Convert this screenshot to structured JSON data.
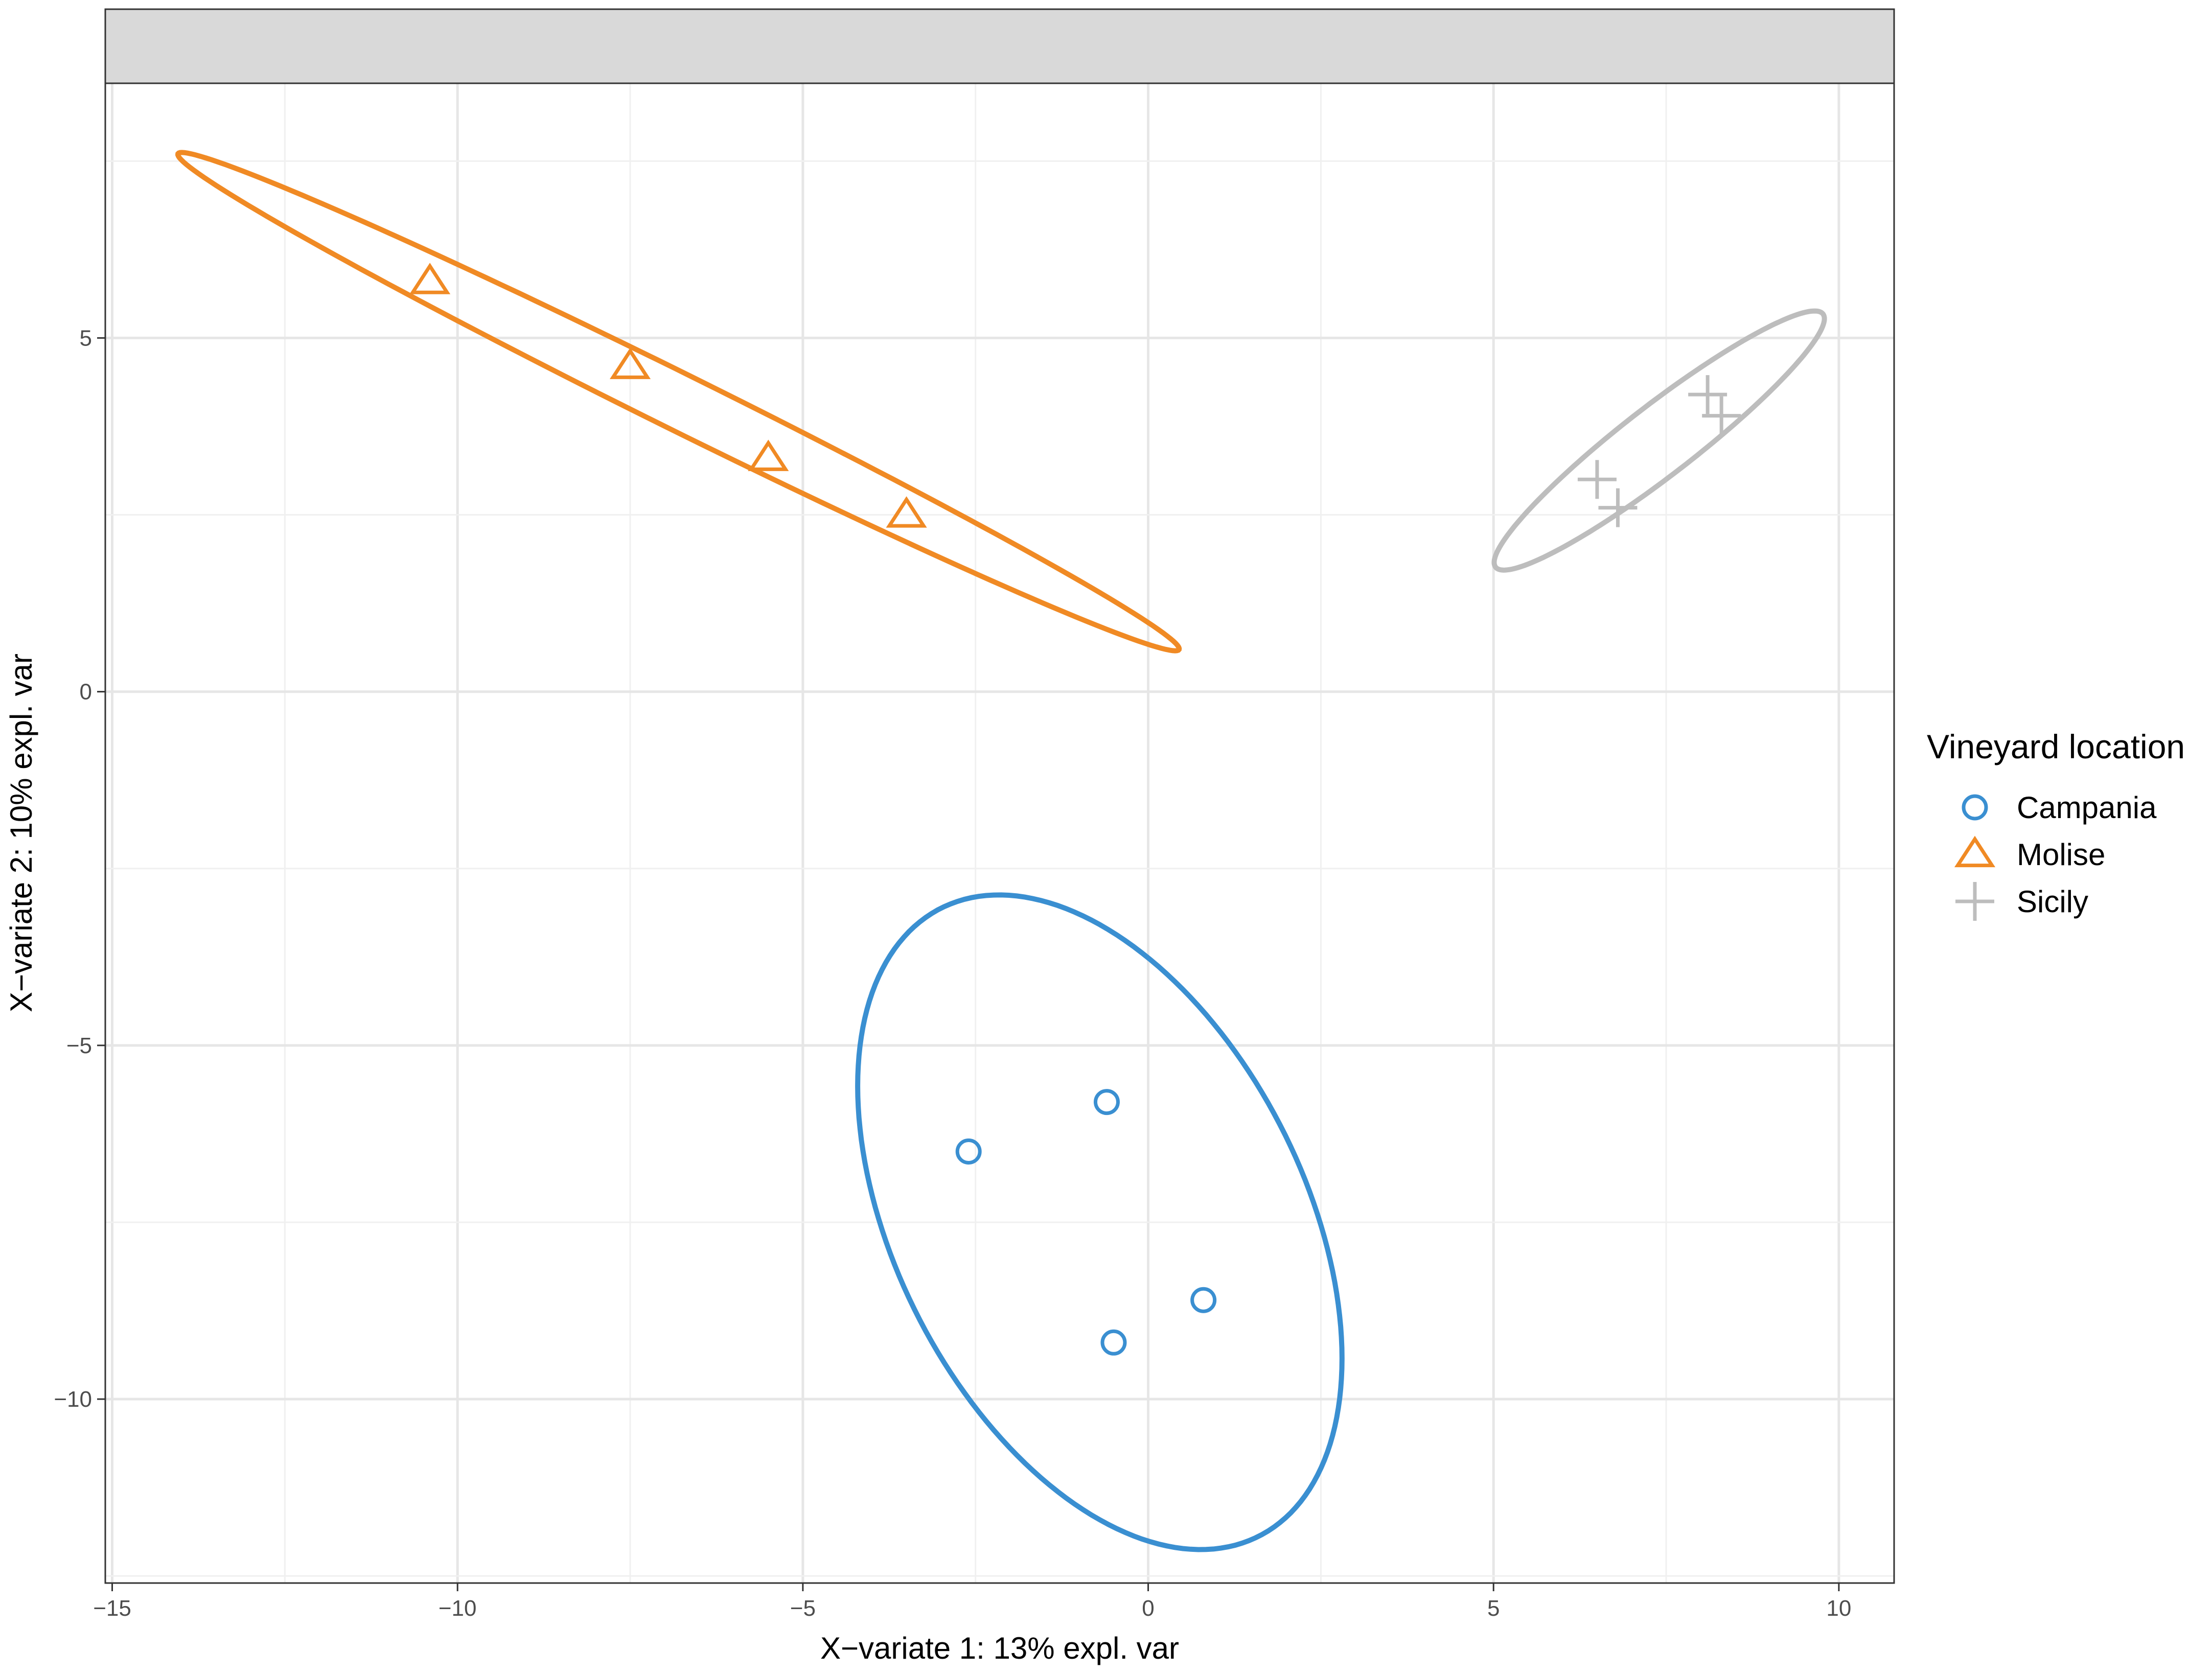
{
  "chart_data": {
    "type": "scatter",
    "title": "",
    "xlabel": "X−variate 1: 13% expl. var",
    "ylabel": "X−variate 2: 10% expl. var",
    "xlim": [
      -15.1,
      10.8
    ],
    "ylim": [
      -12.6,
      8.6
    ],
    "x_ticks": [
      -15,
      -10,
      -5,
      0,
      5,
      10
    ],
    "x_tick_labels": [
      "−15",
      "−10",
      "−5",
      "0",
      "5",
      "10"
    ],
    "y_ticks": [
      -10,
      -5,
      0,
      5
    ],
    "y_tick_labels": [
      "−10",
      "−5",
      "0",
      "5"
    ],
    "grid": true,
    "facet_strip": true,
    "legend": {
      "title": "Vineyard location",
      "position": "right"
    },
    "series": [
      {
        "name": "Campania",
        "color": "#3a8fd1",
        "marker": "circle",
        "points": [
          [
            -2.6,
            -6.5
          ],
          [
            -0.6,
            -5.8
          ],
          [
            0.8,
            -8.6
          ],
          [
            -0.5,
            -9.2
          ]
        ],
        "ellipse": {
          "center": [
            -0.7,
            -7.5
          ],
          "semi_major": 5.0,
          "semi_minor": 2.95,
          "angle_deg": -62
        }
      },
      {
        "name": "Molise",
        "color": "#f08a24",
        "marker": "triangle",
        "points": [
          [
            -10.4,
            5.8
          ],
          [
            -7.5,
            4.6
          ],
          [
            -5.5,
            3.3
          ],
          [
            -3.5,
            2.5
          ]
        ],
        "ellipse": {
          "center": [
            -6.8,
            4.1
          ],
          "semi_major": 8.05,
          "semi_minor": 0.4,
          "angle_deg": -25.8
        }
      },
      {
        "name": "Sicily",
        "color": "#bdbdbd",
        "marker": "plus",
        "points": [
          [
            6.5,
            3.0
          ],
          [
            6.8,
            2.6
          ],
          [
            8.1,
            4.2
          ],
          [
            8.3,
            3.9
          ]
        ],
        "ellipse": {
          "center": [
            7.4,
            3.55
          ],
          "semi_major": 2.97,
          "semi_minor": 0.5,
          "angle_deg": 37
        }
      }
    ]
  }
}
